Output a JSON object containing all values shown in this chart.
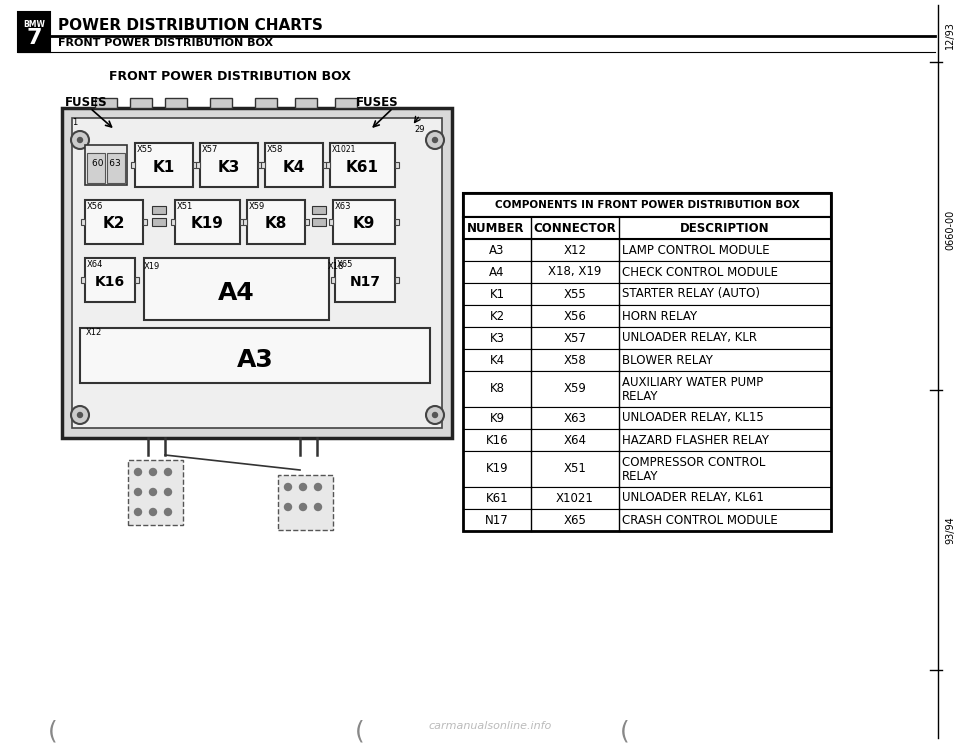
{
  "title_main": "POWER DISTRIBUTION CHARTS",
  "title_sub": "FRONT POWER DISTRIBUTION BOX",
  "diagram_title": "FRONT POWER DISTRIBUTION BOX",
  "fuses_left": "FUSES",
  "fuses_right": "FUSES",
  "table_header": "COMPONENTS IN FRONT POWER DISTRIBUTION BOX",
  "col_headers": [
    "NUMBER",
    "CONNECTOR",
    "DESCRIPTION"
  ],
  "table_data": [
    [
      "A3",
      "X12",
      "LAMP CONTROL MODULE"
    ],
    [
      "A4",
      "X18, X19",
      "CHECK CONTROL MODULE"
    ],
    [
      "K1",
      "X55",
      "STARTER RELAY (AUTO)"
    ],
    [
      "K2",
      "X56",
      "HORN RELAY"
    ],
    [
      "K3",
      "X57",
      "UNLOADER RELAY, KLR"
    ],
    [
      "K4",
      "X58",
      "BLOWER RELAY"
    ],
    [
      "K8",
      "X59",
      "AUXILIARY WATER PUMP\nRELAY"
    ],
    [
      "K9",
      "X63",
      "UNLOADER RELAY, KL15"
    ],
    [
      "K16",
      "X64",
      "HAZARD FLASHER RELAY"
    ],
    [
      "K19",
      "X51",
      "COMPRESSOR CONTROL\nRELAY"
    ],
    [
      "K61",
      "X1021",
      "UNLOADER RELAY, KL61"
    ],
    [
      "N17",
      "X65",
      "CRASH CONTROL MODULE"
    ]
  ],
  "side_text_top": "12/93",
  "side_text_mid": "0660-00",
  "side_text_bot": "93/94",
  "watermark": "carmanualsonline.info",
  "bg_color": "#ffffff",
  "text_color": "#000000"
}
